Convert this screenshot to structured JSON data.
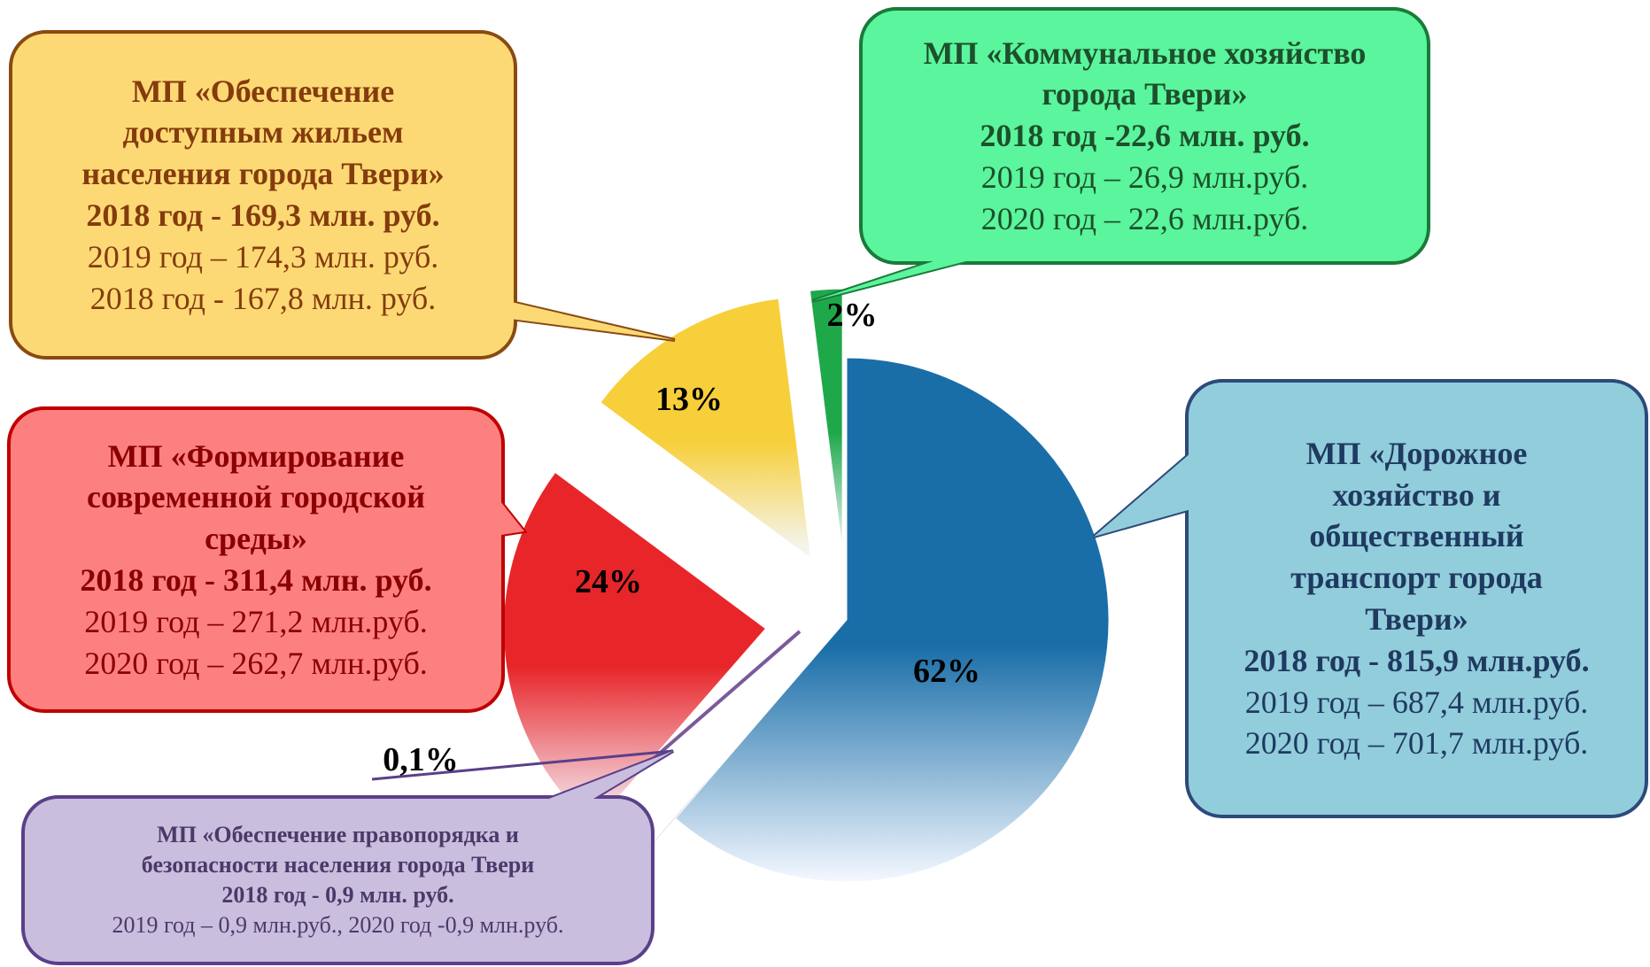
{
  "chart_data": {
    "type": "pie",
    "categories": [
      "МП «Дорожное хозяйство и общественный транспорт города Твери»",
      "МП «Обеспечение правопорядка и безопасности населения города Твери",
      "МП «Формирование современной городской среды»",
      "МП «Обеспечение доступным жильем населения города Твери»",
      "МП «Коммунальное хозяйство города Твери»"
    ],
    "values": [
      62,
      0.1,
      24,
      13,
      2
    ],
    "value_labels": [
      "62%",
      "0,1%",
      "24%",
      "13%",
      "2%"
    ],
    "colors": [
      "#1a6ea8",
      "#7a5a9a",
      "#e8262a",
      "#f7cf3a",
      "#1fa84a"
    ],
    "details": [
      [
        "2018 год - 815,9 млн.руб.",
        "2019 год – 687,4 млн.руб.",
        "2020 год – 701,7 млн.руб."
      ],
      [
        "2018 год - 0,9  млн. руб.",
        "2019 год – 0,9 млн.руб., 2020 год -0,9 млн.руб."
      ],
      [
        "2018 год - 311,4  млн. руб.",
        "2019 год – 271,2 млн.руб.",
        "2020 год – 262,7 млн.руб."
      ],
      [
        "2018 год - 169,3 млн. руб.",
        "2019 год – 174,3 млн. руб.",
        "2018 год - 167,8 млн. руб."
      ],
      [
        "2018 год -22,6  млн. руб.",
        "2019 год – 26,9 млн.руб.",
        "2020 год – 22,6 млн.руб."
      ]
    ]
  }
}
